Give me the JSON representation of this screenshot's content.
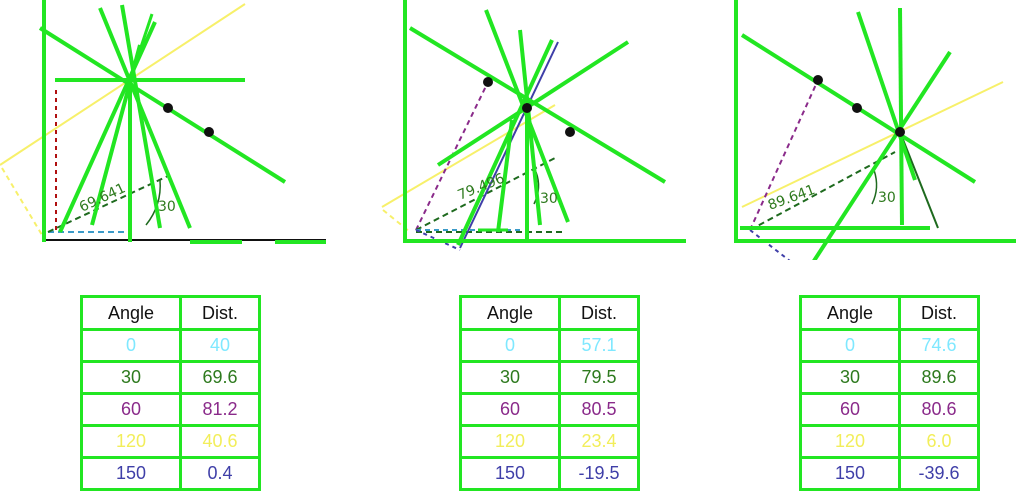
{
  "colors": {
    "primary": "#22e622",
    "row0": "#7fe8ff",
    "row30": "#2e7a1e",
    "row60": "#8a2a8a",
    "row120": "#f2ee5a",
    "row150": "#3f3fa8"
  },
  "panels": [
    {
      "arc_label": "30",
      "dist_label": "69.641",
      "table": {
        "headers": [
          "Angle",
          "Dist."
        ],
        "rows": [
          {
            "angle": "0",
            "dist": "40"
          },
          {
            "angle": "30",
            "dist": "69.6"
          },
          {
            "angle": "60",
            "dist": "81.2"
          },
          {
            "angle": "120",
            "dist": "40.6"
          },
          {
            "angle": "150",
            "dist": "0.4"
          }
        ]
      }
    },
    {
      "arc_label": "30",
      "dist_label": "79.496",
      "table": {
        "headers": [
          "Angle",
          "Dist."
        ],
        "rows": [
          {
            "angle": "0",
            "dist": "57.1"
          },
          {
            "angle": "30",
            "dist": "79.5"
          },
          {
            "angle": "60",
            "dist": "80.5"
          },
          {
            "angle": "120",
            "dist": "23.4"
          },
          {
            "angle": "150",
            "dist": "-19.5"
          }
        ]
      }
    },
    {
      "arc_label": "30",
      "dist_label": "89.641",
      "table": {
        "headers": [
          "Angle",
          "Dist."
        ],
        "rows": [
          {
            "angle": "0",
            "dist": "74.6"
          },
          {
            "angle": "30",
            "dist": "89.6"
          },
          {
            "angle": "60",
            "dist": "80.6"
          },
          {
            "angle": "120",
            "dist": "6.0"
          },
          {
            "angle": "150",
            "dist": "-39.6"
          }
        ]
      }
    }
  ]
}
